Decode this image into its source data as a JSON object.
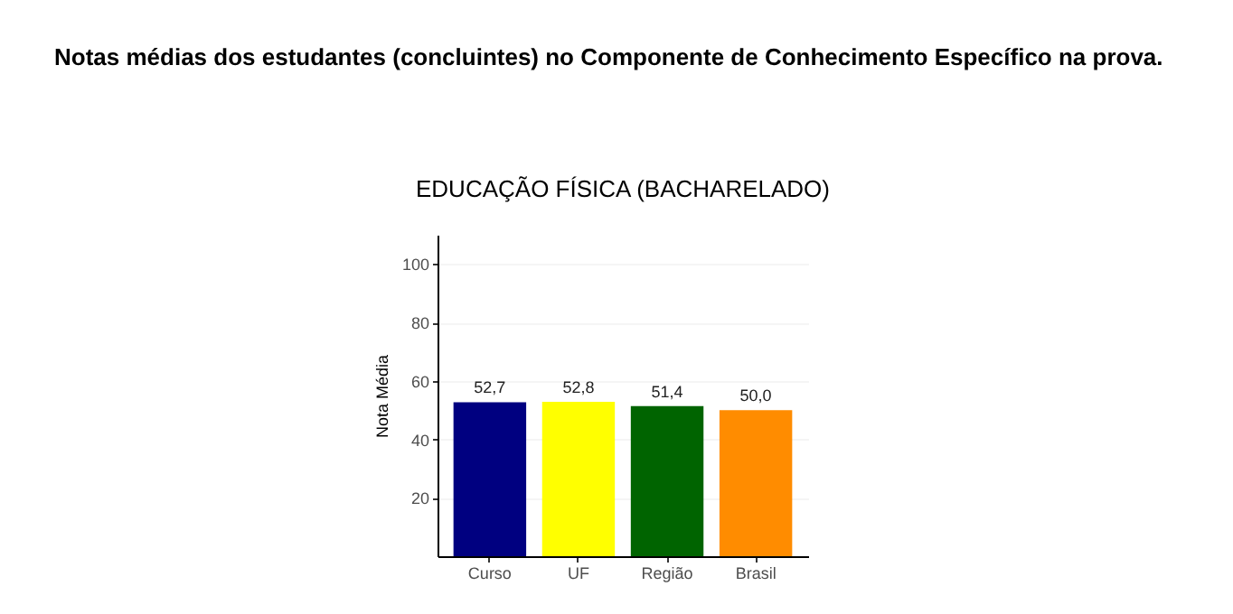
{
  "chart_data": {
    "type": "bar",
    "title": "Notas médias dos estudantes (concluintes) no Componente de Conhecimento Específico na prova.",
    "subtitle": "EDUCAÇÃO FÍSICA (BACHARELADO)",
    "ylabel": "Nota Média",
    "categories": [
      "Curso",
      "UF",
      "Região",
      "Brasil"
    ],
    "values": [
      52.7,
      52.8,
      51.4,
      50.0
    ],
    "colors": [
      "#000080",
      "#ffff00",
      "#006400",
      "#ff8c00"
    ],
    "value_labels": [
      "52,7",
      "52,8",
      "51,4",
      "50,0"
    ],
    "ylim": [
      0,
      110
    ],
    "yticks": [
      20,
      40,
      60,
      80,
      100
    ],
    "grid": "y",
    "legend": false
  }
}
